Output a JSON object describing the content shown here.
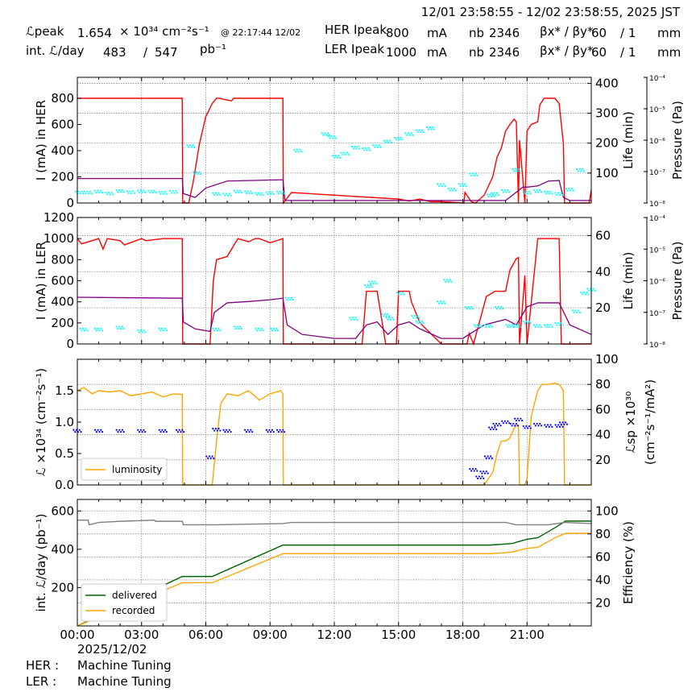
{
  "header": {
    "range": "12/01 23:58:55 - 12/02 23:58:55, 2025 JST",
    "lpeak_label": "ℒpeak",
    "lpeak_value": "1.654",
    "lpeak_unit": "× 10³⁴ cm⁻²s⁻¹",
    "lpeak_time": "@ 22:17:44 12/02",
    "intl_label": "int. ℒ/day",
    "intl_value": "483",
    "intl_sep": "/",
    "intl_total": "547",
    "intl_unit": "pb⁻¹",
    "her_label": "HER Ipeak",
    "her_ipeak": "800",
    "ler_label": "LER Ipeak",
    "ler_ipeak": "1000",
    "ma": "mA",
    "nb_label": "nb",
    "her_nb": "2346",
    "ler_nb": "2346",
    "beta_label": "βx* / βy*",
    "her_bx": "60",
    "her_by": "/ 1",
    "ler_bx": "60",
    "ler_by": "/ 1",
    "mm": "mm"
  },
  "footer": {
    "date": "2025/12/02",
    "her_label": "HER :",
    "her_status": "Machine Tuning",
    "ler_label": "LER :",
    "ler_status": "Machine Tuning"
  },
  "colors": {
    "current": "#ff0000",
    "life": "#00ffff",
    "pressure": "#800080",
    "specific": "#0000ff",
    "luminosity": "#ffa500",
    "delivered": "#006400",
    "recorded": "#ffa500",
    "efficiency": "#808080"
  },
  "chart_data": [
    {
      "type": "line",
      "panel": "HER",
      "ylabel": "I (mA) in HER",
      "y2label": "Life (min)",
      "y3label": "Pressure (Pa)",
      "ylim": [
        0,
        960
      ],
      "y2lim": [
        0,
        420
      ],
      "y3lim": [
        1e-08,
        0.0001
      ],
      "y3scale": "log",
      "xlim": [
        0,
        24
      ],
      "xticks": [
        "00:00",
        "03:00",
        "06:00",
        "09:00",
        "12:00",
        "15:00",
        "18:00",
        "21:00"
      ],
      "yticks": [
        0,
        200,
        400,
        600,
        800
      ],
      "y2ticks": [
        100,
        200,
        300,
        400
      ],
      "y3ticks": [
        "10⁻⁸",
        "10⁻⁷",
        "10⁻⁶",
        "10⁻⁵",
        "10⁻⁴"
      ],
      "grid": true,
      "series": [
        {
          "name": "current",
          "x": [
            0,
            0.2,
            4.9,
            4.92,
            5.2,
            5.4,
            5.7,
            6.0,
            6.3,
            6.5,
            6.6,
            7.2,
            7.3,
            8.2,
            8.3,
            9.6,
            9.62,
            10.0,
            15.0,
            15.5,
            16.0,
            16.5,
            17.0,
            18.0,
            18.05,
            18.1,
            18.4,
            18.6,
            19.0,
            19.4,
            19.6,
            19.8,
            20.0,
            20.2,
            20.4,
            20.5,
            20.6,
            20.65,
            20.9,
            21.0,
            21.2,
            21.5,
            21.6,
            21.8,
            22.0,
            22.3,
            22.5,
            22.7,
            22.75,
            23.5,
            23.9,
            24.0
          ],
          "values": [
            800,
            800,
            800,
            0,
            0,
            150,
            450,
            660,
            760,
            800,
            800,
            780,
            800,
            800,
            800,
            800,
            0,
            80,
            30,
            15,
            30,
            10,
            10,
            0,
            0,
            80,
            10,
            0,
            60,
            200,
            350,
            420,
            550,
            600,
            640,
            620,
            0,
            480,
            0,
            550,
            600,
            620,
            750,
            800,
            800,
            800,
            760,
            450,
            0,
            0,
            0,
            100
          ]
        },
        {
          "name": "pressure",
          "x": [
            0,
            4.9,
            4.95,
            5.5,
            6.0,
            7.0,
            9.6,
            9.7,
            20.0,
            20.5,
            20.8,
            21.0,
            21.5,
            22.0,
            22.5,
            22.7,
            23.0,
            24.0
          ],
          "values": [
            6e-08,
            6e-08,
            2e-08,
            1.5e-08,
            3e-08,
            5e-08,
            5.5e-08,
            1.2e-08,
            1.2e-08,
            2.2e-08,
            3.2e-08,
            3.2e-08,
            3.5e-08,
            5e-08,
            5.2e-08,
            1.5e-08,
            1.2e-08,
            1.2e-08
          ]
        },
        {
          "name": "life",
          "x": [
            0.1,
            0.5,
            1.0,
            1.5,
            2.0,
            2.5,
            3.0,
            3.5,
            4.0,
            4.5,
            5.3,
            5.6,
            6.5,
            7.0,
            7.5,
            8.0,
            8.5,
            9.0,
            9.5,
            10.3,
            11.6,
            11.9,
            12.1,
            12.5,
            13.0,
            13.5,
            14.0,
            14.5,
            15.0,
            15.5,
            16.0,
            16.5,
            17.0,
            17.5,
            18.0,
            18.5,
            19.3,
            19.5,
            20.0,
            20.5,
            21.0,
            21.5,
            22.0,
            22.5,
            23.0,
            23.5
          ],
          "values": [
            35,
            35,
            38,
            32,
            40,
            36,
            39,
            38,
            34,
            37,
            190,
            100,
            30,
            28,
            38,
            36,
            30,
            33,
            35,
            175,
            230,
            220,
            155,
            165,
            185,
            180,
            190,
            205,
            215,
            230,
            240,
            250,
            60,
            45,
            60,
            95,
            25,
            30,
            40,
            110,
            35,
            40,
            35,
            30,
            45,
            110
          ]
        }
      ]
    },
    {
      "type": "line",
      "panel": "LER",
      "ylabel": "I (mA) in LER",
      "y2label": "Life (min)",
      "y3label": "Pressure (Pa)",
      "ylim": [
        0,
        1200
      ],
      "y2lim": [
        0,
        70
      ],
      "y3lim": [
        1e-08,
        0.0001
      ],
      "y3scale": "log",
      "xlim": [
        0,
        24
      ],
      "xticks": [
        "00:00",
        "03:00",
        "06:00",
        "09:00",
        "12:00",
        "15:00",
        "18:00",
        "21:00"
      ],
      "yticks": [
        0,
        200,
        400,
        600,
        800,
        1000,
        1200
      ],
      "y2ticks": [
        20,
        40,
        60
      ],
      "y3ticks": [
        "10⁻⁸",
        "10⁻⁷",
        "10⁻⁶",
        "10⁻⁵",
        "10⁻⁴"
      ],
      "grid": true,
      "series": [
        {
          "name": "current",
          "x": [
            0,
            0.2,
            1.0,
            1.2,
            1.4,
            2.0,
            2.2,
            3.0,
            3.2,
            4.0,
            4.9,
            4.92,
            6.2,
            6.35,
            6.5,
            7.0,
            7.5,
            8.0,
            8.3,
            8.5,
            9.0,
            9.6,
            9.62,
            10.0,
            13.3,
            13.5,
            14.0,
            14.2,
            14.4,
            14.9,
            15.0,
            15.5,
            15.6,
            16.0,
            17.0,
            18.2,
            18.3,
            18.5,
            19.1,
            19.5,
            20.0,
            20.2,
            20.5,
            20.6,
            20.65,
            20.9,
            21.0,
            21.5,
            21.6,
            22.0,
            22.5,
            22.6,
            23.0,
            24.0
          ],
          "values": [
            1000,
            950,
            1000,
            900,
            1000,
            980,
            940,
            1000,
            980,
            1000,
            1000,
            0,
            0,
            600,
            800,
            830,
            1000,
            970,
            1000,
            1000,
            960,
            1000,
            0,
            0,
            0,
            500,
            500,
            250,
            0,
            0,
            500,
            500,
            400,
            200,
            0,
            0,
            100,
            0,
            450,
            500,
            500,
            700,
            810,
            820,
            0,
            650,
            0,
            1000,
            1000,
            1000,
            1000,
            0,
            0,
            0
          ]
        },
        {
          "name": "pressure",
          "x": [
            0,
            4.9,
            4.95,
            5.5,
            6.2,
            6.4,
            7.0,
            8.0,
            9.0,
            9.6,
            9.8,
            10.5,
            12.0,
            13.0,
            13.5,
            14.0,
            14.5,
            15.0,
            15.5,
            16.0,
            17.0,
            18.0,
            19.0,
            20.0,
            20.5,
            21.0,
            21.5,
            22.0,
            22.5,
            23.0,
            24.0
          ],
          "values": [
            3e-07,
            2.8e-07,
            5e-08,
            3e-08,
            2.5e-08,
            1e-07,
            2e-07,
            2.2e-07,
            2.5e-07,
            2.8e-07,
            4e-08,
            2e-08,
            1.5e-08,
            1.5e-08,
            4e-08,
            5e-08,
            2e-08,
            4e-08,
            5e-08,
            3e-08,
            1.5e-08,
            1.5e-08,
            4e-08,
            6e-08,
            4e-08,
            1.5e-07,
            2e-07,
            2e-07,
            2e-07,
            4e-08,
            2e-08
          ]
        },
        {
          "name": "life",
          "x": [
            0.3,
            1.0,
            2.0,
            3.0,
            4.0,
            6.5,
            7.5,
            8.5,
            9.2,
            9.9,
            12.9,
            13.6,
            13.8,
            14.4,
            14.6,
            15.1,
            15.8,
            16.0,
            17.0,
            17.3,
            18.3,
            18.7,
            19.2,
            19.7,
            20.2,
            20.5,
            21.0,
            21.5,
            22.0,
            22.5,
            23.3,
            23.7,
            24.0
          ],
          "values": [
            8,
            8,
            9,
            7,
            8,
            8,
            9,
            8,
            8,
            25,
            14,
            32,
            34,
            16,
            14,
            28,
            15,
            12,
            23,
            35,
            20,
            10,
            10,
            20,
            10,
            10,
            12,
            10,
            10,
            11,
            18,
            28,
            30
          ]
        }
      ]
    },
    {
      "type": "scatter",
      "panel": "luminosity",
      "ylabel": "ℒ ×10³⁴ (cm⁻²s⁻¹)",
      "y2label": "ℒsp ×10³⁰ (cm⁻²s⁻¹/mA²)",
      "ylim": [
        0,
        2.0
      ],
      "y2lim": [
        0,
        100
      ],
      "xlim": [
        0,
        24
      ],
      "xticks": [
        "00:00",
        "03:00",
        "06:00",
        "09:00",
        "12:00",
        "15:00",
        "18:00",
        "21:00"
      ],
      "yticks": [
        0.0,
        0.5,
        1.0,
        1.5
      ],
      "y2ticks": [
        20,
        40,
        60,
        80,
        100
      ],
      "legend": "lower-left",
      "grid": true,
      "series": [
        {
          "name": "luminosity",
          "x": [
            0,
            0.3,
            0.7,
            1.0,
            1.5,
            2.0,
            2.5,
            3.0,
            3.5,
            4.0,
            4.5,
            4.9,
            4.92,
            6.3,
            6.5,
            6.7,
            7.0,
            7.5,
            8.0,
            8.5,
            9.0,
            9.5,
            9.6,
            9.62,
            19.0,
            19.4,
            19.6,
            19.8,
            20.0,
            20.2,
            20.4,
            20.5,
            20.6,
            20.65,
            20.9,
            21.0,
            21.2,
            21.5,
            21.7,
            22.0,
            22.3,
            22.5,
            22.7,
            22.75,
            24.0
          ],
          "values": [
            1.5,
            1.55,
            1.45,
            1.5,
            1.48,
            1.5,
            1.42,
            1.45,
            1.48,
            1.4,
            1.45,
            1.44,
            0,
            0,
            0.7,
            1.3,
            1.45,
            1.42,
            1.5,
            1.35,
            1.45,
            1.5,
            1.45,
            0,
            0,
            0.2,
            0.5,
            0.7,
            0.7,
            0.75,
            0.9,
            0.95,
            0.95,
            0,
            0,
            0.1,
            1.1,
            1.5,
            1.6,
            1.6,
            1.62,
            1.6,
            1.5,
            0,
            0
          ]
        },
        {
          "name": "specific",
          "x": [
            0,
            1.0,
            2.0,
            3.0,
            4.0,
            4.8,
            6.2,
            6.5,
            7.0,
            8.0,
            9.0,
            9.5,
            18.5,
            18.8,
            19.0,
            19.2,
            19.4,
            19.6,
            20.0,
            20.4,
            20.6,
            21.0,
            21.5,
            22.0,
            22.5,
            22.7
          ],
          "values": [
            43,
            43,
            43,
            43,
            43,
            43,
            22,
            44,
            43,
            43,
            43,
            43,
            12,
            6,
            10,
            22,
            45,
            48,
            50,
            48,
            52,
            46,
            48,
            47,
            47,
            49
          ]
        }
      ]
    },
    {
      "type": "line",
      "panel": "integrated",
      "ylabel": "int. ℒ/day (pb⁻¹)",
      "y2label": "Efficiency (%)",
      "ylim": [
        0,
        660
      ],
      "y2lim": [
        0,
        110
      ],
      "xlim": [
        0,
        24
      ],
      "xticks": [
        "00:00",
        "03:00",
        "06:00",
        "09:00",
        "12:00",
        "15:00",
        "18:00",
        "21:00"
      ],
      "yticks": [
        200,
        400,
        600
      ],
      "y2ticks": [
        20,
        40,
        60,
        80,
        100
      ],
      "legend": "lower-left",
      "grid": true,
      "series": [
        {
          "name": "delivered",
          "x": [
            0,
            4.9,
            6.3,
            9.6,
            19.3,
            20.3,
            21.0,
            21.5,
            22.3,
            22.8,
            24.0
          ],
          "values": [
            0,
            258,
            258,
            422,
            422,
            430,
            452,
            460,
            512,
            547,
            547
          ]
        },
        {
          "name": "recorded",
          "x": [
            0,
            4.9,
            6.3,
            9.6,
            19.3,
            20.3,
            21.0,
            21.5,
            22.3,
            22.8,
            24.0
          ],
          "values": [
            0,
            225,
            225,
            377,
            377,
            385,
            405,
            410,
            460,
            483,
            483
          ]
        },
        {
          "name": "efficiency",
          "x": [
            0,
            0.5,
            0.55,
            1.0,
            2.0,
            3.6,
            3.65,
            4.9,
            4.95,
            6.5,
            9.6,
            10.0,
            20.0,
            20.5,
            22.0,
            22.75,
            24.0
          ],
          "values": [
            92,
            92,
            88,
            90,
            91,
            92,
            91,
            91,
            88,
            88,
            89,
            90,
            90,
            88,
            88,
            90,
            89
          ]
        }
      ]
    }
  ]
}
